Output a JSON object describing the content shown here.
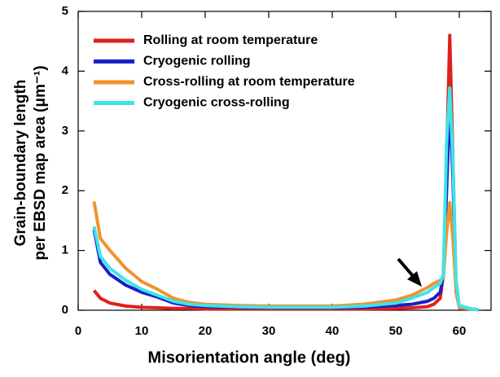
{
  "chart_data": {
    "type": "line",
    "xlabel": "Misorientation angle (deg)",
    "ylabel": [
      "Grain-boundary length",
      "per EBSD map area (μm⁻¹)"
    ],
    "xlim": [
      0,
      65
    ],
    "xticks": [
      0,
      10,
      20,
      30,
      40,
      50,
      60
    ],
    "ylim": [
      0,
      5
    ],
    "yticks": [
      0,
      1,
      2,
      3,
      4,
      5
    ],
    "legend": "top-left",
    "x": [
      2.5,
      3.5,
      5,
      7.5,
      10,
      12.5,
      15,
      17.5,
      20,
      25,
      30,
      35,
      40,
      45,
      50,
      52.5,
      55,
      56,
      57,
      57.5,
      58,
      58.5,
      59,
      59.5,
      60,
      61,
      62,
      63
    ],
    "series": [
      {
        "name": "Rolling at room temperature",
        "color": "#e0201c",
        "values": [
          0.33,
          0.2,
          0.12,
          0.07,
          0.05,
          0.04,
          0.03,
          0.03,
          0.02,
          0.02,
          0.02,
          0.02,
          0.02,
          0.02,
          0.03,
          0.04,
          0.06,
          0.1,
          0.2,
          0.6,
          2.5,
          4.6,
          2.5,
          0.3,
          0.05,
          0.03,
          0.02,
          0.01
        ]
      },
      {
        "name": "Cryogenic rolling",
        "color": "#1a1fc8",
        "values": [
          1.35,
          0.8,
          0.6,
          0.42,
          0.3,
          0.22,
          0.12,
          0.08,
          0.06,
          0.05,
          0.04,
          0.04,
          0.04,
          0.05,
          0.08,
          0.1,
          0.15,
          0.2,
          0.3,
          0.6,
          2.0,
          3.5,
          2.2,
          0.4,
          0.05,
          0.03,
          0.02,
          0.01
        ]
      },
      {
        "name": "Cross-rolling at room temperature",
        "color": "#f0922e",
        "values": [
          1.82,
          1.2,
          1.0,
          0.7,
          0.48,
          0.35,
          0.2,
          0.13,
          0.1,
          0.08,
          0.07,
          0.07,
          0.07,
          0.1,
          0.17,
          0.25,
          0.38,
          0.45,
          0.5,
          0.55,
          1.3,
          1.8,
          1.2,
          0.3,
          0.05,
          0.03,
          0.02,
          0.01
        ]
      },
      {
        "name": "Cryogenic cross-rolling",
        "color": "#3ee4e8",
        "values": [
          1.4,
          0.9,
          0.7,
          0.5,
          0.35,
          0.25,
          0.15,
          0.1,
          0.08,
          0.06,
          0.05,
          0.05,
          0.05,
          0.07,
          0.12,
          0.2,
          0.3,
          0.38,
          0.45,
          0.6,
          2.8,
          3.72,
          2.5,
          0.5,
          0.08,
          0.05,
          0.02,
          0.01
        ]
      }
    ]
  }
}
